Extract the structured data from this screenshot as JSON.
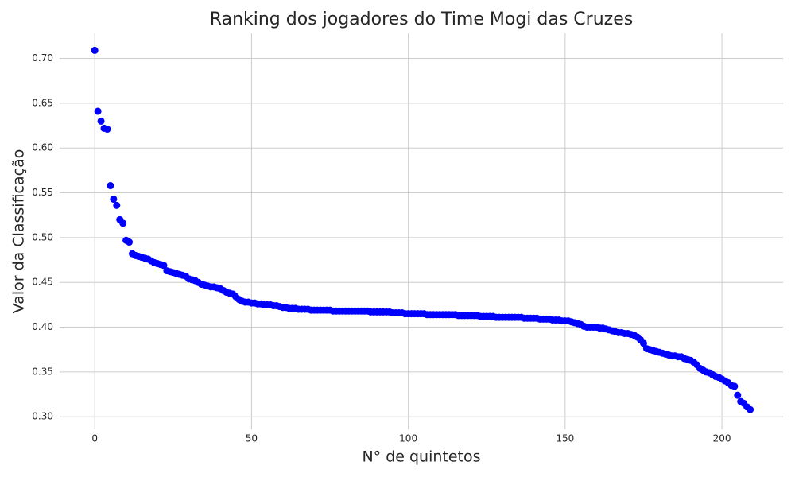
{
  "chart_data": {
    "type": "scatter",
    "title": "Ranking dos jogadores do Time Mogi das Cruzes",
    "x_label": "N° de quintetos",
    "y_label": "Valor da Classificação",
    "color": "#0000ff",
    "grid": true,
    "xlim": [
      -11.2,
      219.5
    ],
    "ylim": [
      0.286,
      0.728
    ],
    "xticks": [
      0,
      50,
      100,
      150,
      200
    ],
    "yticks": [
      {
        "value": 0.3,
        "label": "0.30"
      },
      0.35,
      {
        "value": 0.4,
        "label": "0.40"
      },
      0.45,
      {
        "value": 0.5,
        "label": "0.50"
      },
      0.55,
      {
        "value": 0.6,
        "label": "0.60"
      },
      0.65,
      {
        "value": 0.7,
        "label": "0.70"
      }
    ],
    "x": [
      0,
      1,
      2,
      3,
      4,
      5,
      6,
      7,
      8,
      9,
      10,
      11,
      12,
      13,
      14,
      15,
      16,
      17,
      18,
      19,
      20,
      21,
      22,
      23,
      24,
      25,
      26,
      27,
      28,
      29,
      30,
      31,
      32,
      33,
      34,
      35,
      36,
      37,
      38,
      39,
      40,
      41,
      42,
      43,
      44,
      45,
      46,
      47,
      48,
      49,
      50,
      51,
      52,
      53,
      54,
      55,
      56,
      57,
      58,
      59,
      60,
      61,
      62,
      63,
      64,
      65,
      66,
      67,
      68,
      69,
      70,
      71,
      72,
      73,
      74,
      75,
      76,
      77,
      78,
      79,
      80,
      81,
      82,
      83,
      84,
      85,
      86,
      87,
      88,
      89,
      90,
      91,
      92,
      93,
      94,
      95,
      96,
      97,
      98,
      99,
      100,
      101,
      102,
      103,
      104,
      105,
      106,
      107,
      108,
      109,
      110,
      111,
      112,
      113,
      114,
      115,
      116,
      117,
      118,
      119,
      120,
      121,
      122,
      123,
      124,
      125,
      126,
      127,
      128,
      129,
      130,
      131,
      132,
      133,
      134,
      135,
      136,
      137,
      138,
      139,
      140,
      141,
      142,
      143,
      144,
      145,
      146,
      147,
      148,
      149,
      150,
      151,
      152,
      153,
      154,
      155,
      156,
      157,
      158,
      159,
      160,
      161,
      162,
      163,
      164,
      165,
      166,
      167,
      168,
      169,
      170,
      171,
      172,
      173,
      174,
      175,
      176,
      177,
      178,
      179,
      180,
      181,
      182,
      183,
      184,
      185,
      186,
      187,
      188,
      189,
      190,
      191,
      192,
      193,
      194,
      195,
      196,
      197,
      198,
      199,
      200,
      201,
      202,
      203,
      204,
      205,
      206,
      207,
      208,
      209
    ],
    "values": [
      0.709,
      0.641,
      0.63,
      0.622,
      0.621,
      0.558,
      0.543,
      0.536,
      0.52,
      0.516,
      0.497,
      0.495,
      0.482,
      0.48,
      0.479,
      0.478,
      0.477,
      0.476,
      0.474,
      0.472,
      0.471,
      0.47,
      0.469,
      0.463,
      0.462,
      0.461,
      0.46,
      0.459,
      0.458,
      0.457,
      0.454,
      0.453,
      0.452,
      0.45,
      0.448,
      0.447,
      0.446,
      0.445,
      0.445,
      0.444,
      0.443,
      0.441,
      0.439,
      0.438,
      0.437,
      0.434,
      0.431,
      0.429,
      0.428,
      0.428,
      0.427,
      0.427,
      0.426,
      0.426,
      0.425,
      0.425,
      0.425,
      0.424,
      0.424,
      0.423,
      0.422,
      0.422,
      0.421,
      0.421,
      0.421,
      0.42,
      0.42,
      0.42,
      0.42,
      0.419,
      0.419,
      0.419,
      0.419,
      0.419,
      0.419,
      0.419,
      0.418,
      0.418,
      0.418,
      0.418,
      0.418,
      0.418,
      0.418,
      0.418,
      0.418,
      0.418,
      0.418,
      0.418,
      0.417,
      0.417,
      0.417,
      0.417,
      0.417,
      0.417,
      0.417,
      0.416,
      0.416,
      0.416,
      0.416,
      0.415,
      0.415,
      0.415,
      0.415,
      0.415,
      0.415,
      0.415,
      0.414,
      0.414,
      0.414,
      0.414,
      0.414,
      0.414,
      0.414,
      0.414,
      0.414,
      0.414,
      0.413,
      0.413,
      0.413,
      0.413,
      0.413,
      0.413,
      0.413,
      0.412,
      0.412,
      0.412,
      0.412,
      0.412,
      0.411,
      0.411,
      0.411,
      0.411,
      0.411,
      0.411,
      0.411,
      0.411,
      0.411,
      0.41,
      0.41,
      0.41,
      0.41,
      0.41,
      0.409,
      0.409,
      0.409,
      0.409,
      0.408,
      0.408,
      0.408,
      0.407,
      0.407,
      0.407,
      0.406,
      0.405,
      0.404,
      0.403,
      0.401,
      0.4,
      0.4,
      0.4,
      0.4,
      0.399,
      0.399,
      0.398,
      0.397,
      0.396,
      0.395,
      0.394,
      0.394,
      0.393,
      0.393,
      0.392,
      0.391,
      0.389,
      0.386,
      0.382,
      0.376,
      0.375,
      0.374,
      0.373,
      0.372,
      0.371,
      0.37,
      0.369,
      0.368,
      0.368,
      0.367,
      0.367,
      0.365,
      0.364,
      0.363,
      0.361,
      0.358,
      0.354,
      0.352,
      0.35,
      0.349,
      0.347,
      0.345,
      0.344,
      0.342,
      0.34,
      0.338,
      0.335,
      0.334,
      0.324,
      0.317,
      0.315,
      0.311,
      0.308
    ]
  }
}
